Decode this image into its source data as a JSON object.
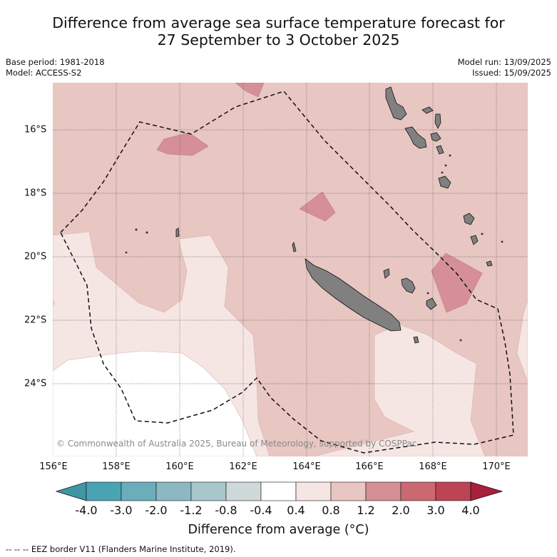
{
  "title_line1": "Difference from average sea surface temperature forecast for",
  "title_line2": "27 September to 3 October 2025",
  "meta_left": {
    "base_period": "Base period: 1981-2018",
    "model": "Model: ACCESS-S2"
  },
  "meta_right": {
    "model_run": "Model run: 13/09/2025",
    "issued": "Issued: 15/09/2025"
  },
  "lon_labels": [
    "156°E",
    "158°E",
    "160°E",
    "162°E",
    "164°E",
    "166°E",
    "168°E",
    "170°E"
  ],
  "lat_labels": [
    "16°S",
    "18°S",
    "20°S",
    "22°S",
    "24°S"
  ],
  "colorbar": {
    "tick_labels": [
      "-4.0",
      "-3.0",
      "-2.0",
      "-1.2",
      "-0.8",
      "-0.4",
      "0.4",
      "0.8",
      "1.2",
      "2.0",
      "3.0",
      "4.0"
    ],
    "colors": [
      "#3f96a4",
      "#4aa3b2",
      "#6aaebb",
      "#8cb8c3",
      "#a8c7cb",
      "#cfd9da",
      "#ffffff",
      "#f5e6e4",
      "#e8c6c1",
      "#d68f96",
      "#cb6871",
      "#bd4455",
      "#a8203a"
    ],
    "title": "Difference from average (°C)"
  },
  "credit": "© Commonwealth of Australia 2025, Bureau of Meteorology, supported by COSPPac",
  "footer": "--  --  -- EEZ border V11 (Flanders Marine Institute, 2019).",
  "map_colors": {
    "base": "#e8c6c1",
    "light": "#f5e6e4",
    "white": "#ffffff",
    "warm": "#d68f96",
    "land": "#808080"
  }
}
